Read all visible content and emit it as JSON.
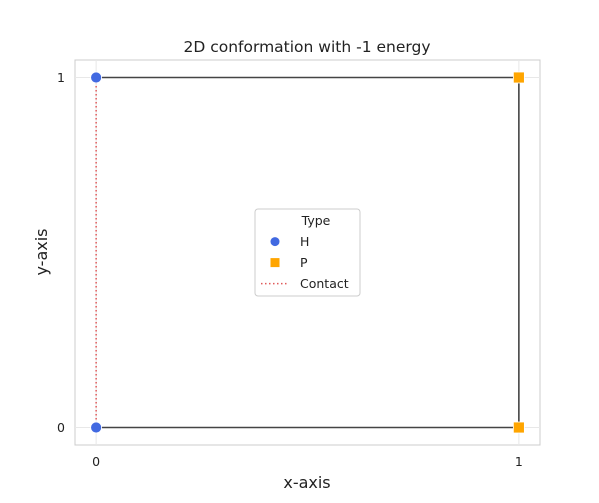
{
  "chart_data": {
    "type": "scatter",
    "title": "2D conformation with -1 energy",
    "xlabel": "x-axis",
    "ylabel": "y-axis",
    "xlim": [
      -0.05,
      1.05
    ],
    "ylim": [
      -0.05,
      1.05
    ],
    "xticks": [
      0,
      1
    ],
    "yticks": [
      0,
      1
    ],
    "grid": true,
    "legend": {
      "title": "Type",
      "placement": "center",
      "entries": [
        {
          "label": "H",
          "marker": "circle",
          "color": "#4169E1"
        },
        {
          "label": "P",
          "marker": "square",
          "color": "#FFA500"
        },
        {
          "label": "Contact",
          "marker": "dotted-line",
          "color": "#E05A5A"
        }
      ]
    },
    "chain": {
      "color": "#444444",
      "points": [
        {
          "x": 0,
          "y": 0,
          "type": "H"
        },
        {
          "x": 1,
          "y": 0,
          "type": "P"
        },
        {
          "x": 1,
          "y": 1,
          "type": "P"
        },
        {
          "x": 0,
          "y": 1,
          "type": "H"
        }
      ]
    },
    "contacts": [
      {
        "from": [
          0,
          0
        ],
        "to": [
          0,
          1
        ]
      }
    ],
    "colors": {
      "H": "#4169E1",
      "P": "#FFA500",
      "contact": "#E05A5A",
      "grid": "#E8E8E8",
      "frame": "#CCCCCC"
    }
  }
}
